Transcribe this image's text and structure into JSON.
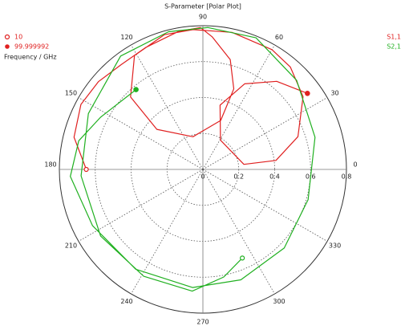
{
  "chart_data": {
    "type": "polar",
    "title": "S-Parameter [Polar Plot]",
    "rlim": [
      0,
      0.8
    ],
    "rticks": [
      0,
      0.2,
      0.4,
      0.6,
      0.8
    ],
    "thetaticks": [
      0,
      30,
      60,
      90,
      120,
      150,
      180,
      210,
      240,
      270,
      300,
      330
    ],
    "grid": true,
    "frequency_markers": {
      "title": "Frequency / GHz",
      "start": 10,
      "end": 99.999992,
      "color": "#e02020"
    },
    "series": [
      {
        "name": "S1,1",
        "color": "#e02020",
        "theta": [
          180,
          166,
          152,
          140,
          128,
          115,
          100,
          91,
          86,
          76,
          69,
          70,
          107,
          139,
          135,
          121,
          106,
          94,
          78,
          60,
          49.5,
          36,
          19,
          7,
          7,
          59,
          75,
          64,
          50,
          36
        ],
        "values": [
          0.65,
          0.74,
          0.77,
          0.76,
          0.74,
          0.75,
          0.78,
          0.79,
          0.74,
          0.63,
          0.48,
          0.29,
          0.19,
          0.34,
          0.57,
          0.74,
          0.78,
          0.78,
          0.78,
          0.77,
          0.75,
          0.69,
          0.56,
          0.41,
          0.23,
          0.19,
          0.37,
          0.53,
          0.64,
          0.72
        ]
      },
      {
        "name": "S2,1",
        "color": "#20b020",
        "theta": [
          294,
          281,
          265,
          241,
          213,
          183,
          154,
          126,
          104,
          88,
          68,
          43.5,
          16,
          344,
          316,
          289,
          265,
          236,
          207,
          183,
          167,
          153,
          130
        ],
        "values": [
          0.54,
          0.61,
          0.68,
          0.68,
          0.68,
          0.68,
          0.71,
          0.78,
          0.79,
          0.79,
          0.79,
          0.72,
          0.65,
          0.61,
          0.63,
          0.65,
          0.66,
          0.67,
          0.69,
          0.74,
          0.71,
          0.64,
          0.58
        ]
      }
    ]
  }
}
